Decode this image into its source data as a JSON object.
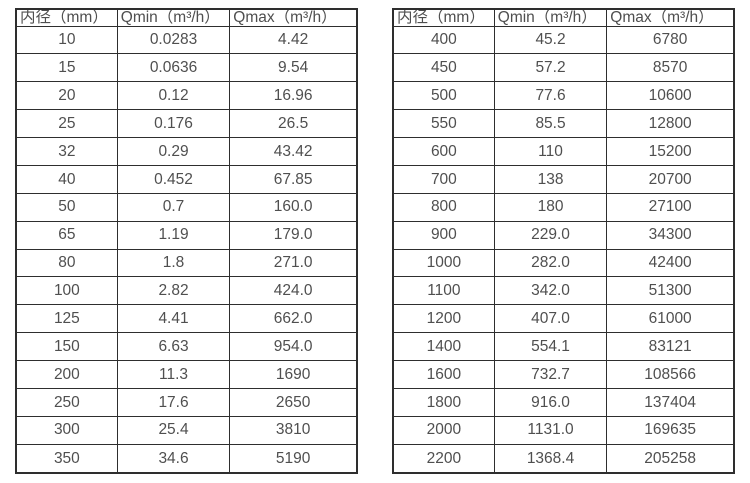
{
  "colors": {
    "border": "#2e2e2e",
    "text": "#4f4f4f",
    "background": "#ffffff"
  },
  "columns": [
    "内径（mm）",
    "Qmin（m³/h）",
    "Qmax（m³/h）"
  ],
  "column_keys": [
    "diameter",
    "qmin",
    "qmax"
  ],
  "tables": [
    {
      "name": "flow-spec-table-left",
      "rows": [
        [
          "10",
          "0.0283",
          "4.42"
        ],
        [
          "15",
          "0.0636",
          "9.54"
        ],
        [
          "20",
          "0.12",
          "16.96"
        ],
        [
          "25",
          "0.176",
          "26.5"
        ],
        [
          "32",
          "0.29",
          "43.42"
        ],
        [
          "40",
          "0.452",
          "67.85"
        ],
        [
          "50",
          "0.7",
          "160.0"
        ],
        [
          "65",
          "1.19",
          "179.0"
        ],
        [
          "80",
          "1.8",
          "271.0"
        ],
        [
          "100",
          "2.82",
          "424.0"
        ],
        [
          "125",
          "4.41",
          "662.0"
        ],
        [
          "150",
          "6.63",
          "954.0"
        ],
        [
          "200",
          "11.3",
          "1690"
        ],
        [
          "250",
          "17.6",
          "2650"
        ],
        [
          "300",
          "25.4",
          "3810"
        ],
        [
          "350",
          "34.6",
          "5190"
        ]
      ]
    },
    {
      "name": "flow-spec-table-right",
      "rows": [
        [
          "400",
          "45.2",
          "6780"
        ],
        [
          "450",
          "57.2",
          "8570"
        ],
        [
          "500",
          "77.6",
          "10600"
        ],
        [
          "550",
          "85.5",
          "12800"
        ],
        [
          "600",
          "110",
          "15200"
        ],
        [
          "700",
          "138",
          "20700"
        ],
        [
          "800",
          "180",
          "27100"
        ],
        [
          "900",
          "229.0",
          "34300"
        ],
        [
          "1000",
          "282.0",
          "42400"
        ],
        [
          "1100",
          "342.0",
          "51300"
        ],
        [
          "1200",
          "407.0",
          "61000"
        ],
        [
          "1400",
          "554.1",
          "83121"
        ],
        [
          "1600",
          "732.7",
          "108566"
        ],
        [
          "1800",
          "916.0",
          "137404"
        ],
        [
          "2000",
          "1131.0",
          "169635"
        ],
        [
          "2200",
          "1368.4",
          "205258"
        ]
      ]
    }
  ]
}
